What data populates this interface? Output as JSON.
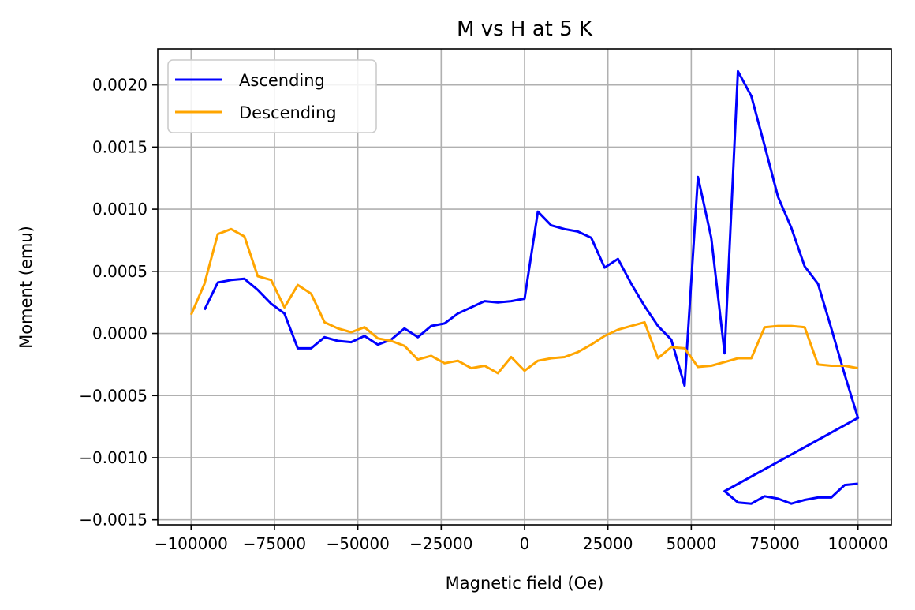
{
  "chart_data": {
    "type": "line",
    "title": "M vs H at 5 K",
    "xlabel": "Magnetic field (Oe)",
    "ylabel": "Moment (emu)",
    "xlim": [
      -110000,
      110000
    ],
    "ylim": [
      -0.00154,
      0.00229
    ],
    "xticks": [
      -100000,
      -75000,
      -50000,
      -25000,
      0,
      25000,
      50000,
      75000,
      100000
    ],
    "xtick_labels": [
      "−100000",
      "−75000",
      "−50000",
      "−25000",
      "0",
      "25000",
      "50000",
      "75000",
      "100000"
    ],
    "yticks": [
      -0.0015,
      -0.001,
      -0.0005,
      0.0,
      0.0005,
      0.001,
      0.0015,
      0.002
    ],
    "ytick_labels": [
      "−0.0015",
      "−0.0010",
      "−0.0005",
      "0.0000",
      "0.0005",
      "0.0010",
      "0.0015",
      "0.0020"
    ],
    "grid": true,
    "legend_position": "top-left",
    "series": [
      {
        "name": "Ascending",
        "color": "#0000ff",
        "points": [
          [
            -96000,
            0.00019
          ],
          [
            -92000,
            0.00041
          ],
          [
            -88000,
            0.00043
          ],
          [
            -84000,
            0.00044
          ],
          [
            -80000,
            0.00035
          ],
          [
            -76000,
            0.00024
          ],
          [
            -72000,
            0.00016
          ],
          [
            -68000,
            -0.00012
          ],
          [
            -64000,
            -0.00012
          ],
          [
            -60000,
            -3e-05
          ],
          [
            -56000,
            -6e-05
          ],
          [
            -52000,
            -7e-05
          ],
          [
            -48000,
            -2e-05
          ],
          [
            -44000,
            -9e-05
          ],
          [
            -40000,
            -5e-05
          ],
          [
            -36000,
            4e-05
          ],
          [
            -32000,
            -3e-05
          ],
          [
            -28000,
            6e-05
          ],
          [
            -24000,
            8e-05
          ],
          [
            -20000,
            0.00016
          ],
          [
            -16000,
            0.00021
          ],
          [
            -12000,
            0.00026
          ],
          [
            -8000,
            0.00025
          ],
          [
            -4000,
            0.00026
          ],
          [
            0,
            0.00028
          ],
          [
            4000,
            0.00098
          ],
          [
            8000,
            0.00087
          ],
          [
            12000,
            0.00084
          ],
          [
            16000,
            0.00082
          ],
          [
            20000,
            0.00077
          ],
          [
            24000,
            0.00053
          ],
          [
            28000,
            0.0006
          ],
          [
            32000,
            0.0004
          ],
          [
            36000,
            0.00022
          ],
          [
            40000,
            6e-05
          ],
          [
            44000,
            -5e-05
          ],
          [
            48000,
            -0.00042
          ],
          [
            52000,
            0.00126
          ],
          [
            56000,
            0.00077
          ],
          [
            60000,
            -0.00016
          ],
          [
            64000,
            0.00211
          ],
          [
            68000,
            0.00191
          ],
          [
            72000,
            0.00151
          ],
          [
            76000,
            0.0011
          ],
          [
            80000,
            0.00085
          ],
          [
            84000,
            0.00054
          ],
          [
            88000,
            0.0004
          ],
          [
            92000,
            4e-05
          ],
          [
            96000,
            -0.00033
          ],
          [
            100000,
            -0.00068
          ],
          [
            60000,
            -0.00127
          ],
          [
            64000,
            -0.00136
          ],
          [
            68000,
            -0.00137
          ],
          [
            72000,
            -0.00131
          ],
          [
            76000,
            -0.00133
          ],
          [
            80000,
            -0.00137
          ],
          [
            84000,
            -0.00134
          ],
          [
            88000,
            -0.00132
          ],
          [
            92000,
            -0.00132
          ],
          [
            96000,
            -0.00122
          ],
          [
            100000,
            -0.00121
          ]
        ]
      },
      {
        "name": "Descending",
        "color": "#ffa500",
        "points": [
          [
            -100000,
            0.00015
          ],
          [
            -96000,
            0.0004
          ],
          [
            -92000,
            0.0008
          ],
          [
            -88000,
            0.00084
          ],
          [
            -84000,
            0.00078
          ],
          [
            -80000,
            0.00046
          ],
          [
            -76000,
            0.00043
          ],
          [
            -72000,
            0.00021
          ],
          [
            -68000,
            0.00039
          ],
          [
            -64000,
            0.00032
          ],
          [
            -60000,
            9e-05
          ],
          [
            -56000,
            4e-05
          ],
          [
            -52000,
            1e-05
          ],
          [
            -48000,
            5e-05
          ],
          [
            -44000,
            -4e-05
          ],
          [
            -40000,
            -6e-05
          ],
          [
            -36000,
            -0.0001
          ],
          [
            -32000,
            -0.00021
          ],
          [
            -28000,
            -0.00018
          ],
          [
            -24000,
            -0.00024
          ],
          [
            -20000,
            -0.00022
          ],
          [
            -16000,
            -0.00028
          ],
          [
            -12000,
            -0.00026
          ],
          [
            -8000,
            -0.00032
          ],
          [
            -4000,
            -0.00019
          ],
          [
            0,
            -0.0003
          ],
          [
            4000,
            -0.00022
          ],
          [
            8000,
            -0.0002
          ],
          [
            12000,
            -0.00019
          ],
          [
            16000,
            -0.00015
          ],
          [
            20000,
            -9e-05
          ],
          [
            24000,
            -2e-05
          ],
          [
            28000,
            3e-05
          ],
          [
            32000,
            6e-05
          ],
          [
            36000,
            9e-05
          ],
          [
            40000,
            -0.0002
          ],
          [
            44000,
            -0.00011
          ],
          [
            48000,
            -0.00012
          ],
          [
            52000,
            -0.00027
          ],
          [
            56000,
            -0.00026
          ],
          [
            60000,
            -0.00023
          ],
          [
            64000,
            -0.0002
          ],
          [
            68000,
            -0.0002
          ],
          [
            72000,
            5e-05
          ],
          [
            76000,
            6e-05
          ],
          [
            80000,
            6e-05
          ],
          [
            84000,
            5e-05
          ],
          [
            88000,
            -0.00025
          ],
          [
            92000,
            -0.00026
          ],
          [
            96000,
            -0.00026
          ],
          [
            100000,
            -0.00028
          ]
        ]
      }
    ]
  }
}
